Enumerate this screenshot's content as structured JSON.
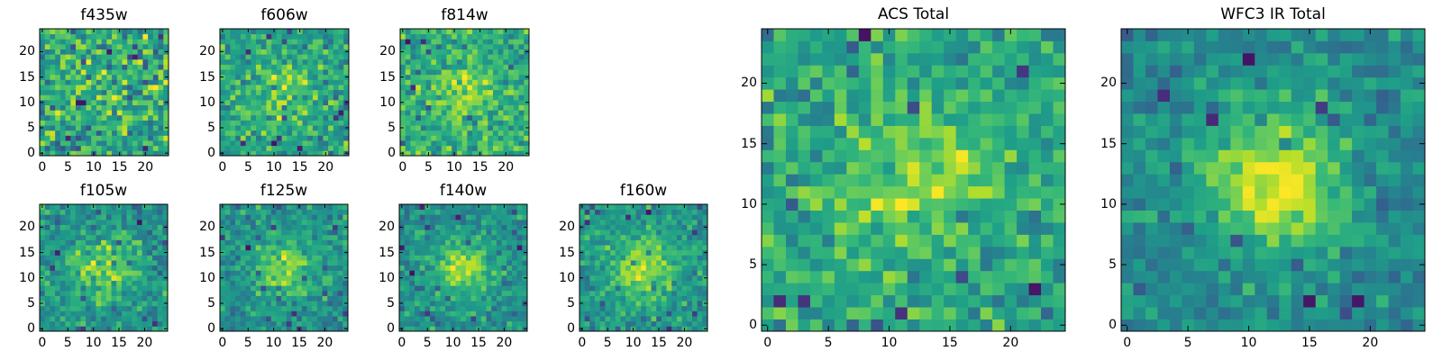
{
  "chart_data": [
    {
      "type": "heatmap",
      "title": "f435w",
      "colormap": "viridis",
      "shape": [
        25,
        25
      ],
      "xlim": [
        -0.5,
        24.5
      ],
      "ylim": [
        -0.5,
        24.5
      ],
      "xticks": [
        "0",
        "5",
        "10",
        "15",
        "20"
      ],
      "yticks": [
        "0",
        "5",
        "10",
        "15",
        "20"
      ],
      "seed": 11,
      "peak": 0.2,
      "noise": 1.0
    },
    {
      "type": "heatmap",
      "title": "f606w",
      "colormap": "viridis",
      "shape": [
        25,
        25
      ],
      "xlim": [
        -0.5,
        24.5
      ],
      "ylim": [
        -0.5,
        24.5
      ],
      "xticks": [
        "0",
        "5",
        "10",
        "15",
        "20"
      ],
      "yticks": [
        "0",
        "5",
        "10",
        "15",
        "20"
      ],
      "seed": 23,
      "peak": 0.6,
      "noise": 1.0
    },
    {
      "type": "heatmap",
      "title": "f814w",
      "colormap": "viridis",
      "shape": [
        25,
        25
      ],
      "xlim": [
        -0.5,
        24.5
      ],
      "ylim": [
        -0.5,
        24.5
      ],
      "xticks": [
        "0",
        "5",
        "10",
        "15",
        "20"
      ],
      "yticks": [
        "0",
        "5",
        "10",
        "15",
        "20"
      ],
      "seed": 37,
      "peak": 0.7,
      "noise": 1.0
    },
    {
      "type": "heatmap",
      "title": "f105w",
      "colormap": "viridis",
      "shape": [
        25,
        25
      ],
      "xlim": [
        -0.5,
        24.5
      ],
      "ylim": [
        -0.5,
        24.5
      ],
      "xticks": [
        "0",
        "5",
        "10",
        "15",
        "20"
      ],
      "yticks": [
        "0",
        "5",
        "10",
        "15",
        "20"
      ],
      "seed": 41,
      "peak": 1.0,
      "noise": 0.9
    },
    {
      "type": "heatmap",
      "title": "f125w",
      "colormap": "viridis",
      "shape": [
        25,
        25
      ],
      "xlim": [
        -0.5,
        24.5
      ],
      "ylim": [
        -0.5,
        24.5
      ],
      "xticks": [
        "0",
        "5",
        "10",
        "15",
        "20"
      ],
      "yticks": [
        "0",
        "5",
        "10",
        "15",
        "20"
      ],
      "seed": 53,
      "peak": 1.1,
      "noise": 0.9
    },
    {
      "type": "heatmap",
      "title": "f140w",
      "colormap": "viridis",
      "shape": [
        25,
        25
      ],
      "xlim": [
        -0.5,
        24.5
      ],
      "ylim": [
        -0.5,
        24.5
      ],
      "xticks": [
        "0",
        "5",
        "10",
        "15",
        "20"
      ],
      "yticks": [
        "0",
        "5",
        "10",
        "15",
        "20"
      ],
      "seed": 67,
      "peak": 1.2,
      "noise": 0.9
    },
    {
      "type": "heatmap",
      "title": "f160w",
      "colormap": "viridis",
      "shape": [
        25,
        25
      ],
      "xlim": [
        -0.5,
        24.5
      ],
      "ylim": [
        -0.5,
        24.5
      ],
      "xticks": [
        "0",
        "5",
        "10",
        "15",
        "20"
      ],
      "yticks": [
        "0",
        "5",
        "10",
        "15",
        "20"
      ],
      "seed": 79,
      "peak": 1.1,
      "noise": 0.9
    },
    {
      "type": "heatmap",
      "title": "ACS Total",
      "colormap": "viridis",
      "shape": [
        25,
        25
      ],
      "xlim": [
        -0.5,
        24.5
      ],
      "ylim": [
        -0.5,
        24.5
      ],
      "xticks": [
        "0",
        "5",
        "10",
        "15",
        "20"
      ],
      "yticks": [
        "0",
        "5",
        "10",
        "15",
        "20"
      ],
      "seed": 97,
      "peak": 0.8,
      "noise": 1.0
    },
    {
      "type": "heatmap",
      "title": "WFC3 IR Total",
      "colormap": "viridis",
      "shape": [
        25,
        25
      ],
      "xlim": [
        -0.5,
        24.5
      ],
      "ylim": [
        -0.5,
        24.5
      ],
      "xticks": [
        "0",
        "5",
        "10",
        "15",
        "20"
      ],
      "yticks": [
        "0",
        "5",
        "10",
        "15",
        "20"
      ],
      "seed": 101,
      "peak": 1.6,
      "noise": 0.8
    }
  ]
}
